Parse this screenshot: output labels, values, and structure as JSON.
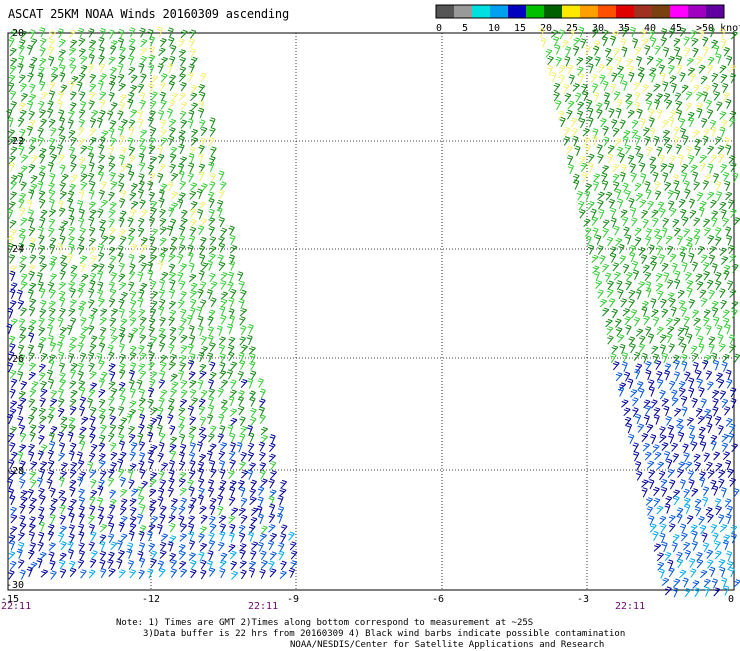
{
  "title": "ASCAT 25KM NOAA Winds 20160309 ascending",
  "legend": {
    "colors": [
      "#555555",
      "#999999",
      "#00e0e0",
      "#00a0f0",
      "#0000c0",
      "#00c000",
      "#006000",
      "#ffe800",
      "#ffa000",
      "#ff5000",
      "#e00000",
      "#a03020",
      "#7a4010",
      "#ff00ff",
      "#a000c0",
      "#6000a0"
    ],
    "labels": [
      "0",
      "5",
      "10",
      "15",
      "20",
      "25",
      "30",
      "35",
      "40",
      "45",
      ">50 knots"
    ]
  },
  "axes": {
    "y_labels": [
      "-20",
      "-22",
      "-24",
      "-26",
      "-28",
      "-30"
    ],
    "x_labels": [
      "-15",
      "-12",
      "-9",
      "-6",
      "-3",
      "0"
    ]
  },
  "times": [
    "22:11",
    "22:11",
    "22:11"
  ],
  "wind_colors": {
    "green_light": "#33cc33",
    "green_dark": "#118811",
    "yellow": "#f0f070",
    "navy": "#000099",
    "blue": "#0055dd",
    "cyan": "#00aaee"
  },
  "notes": {
    "line1": "Note: 1) Times are GMT 2)Times along bottom correspond to measurement at ~25S",
    "line2": "3)Data buffer is 22 hrs from 20160309 4) Black wind barbs indicate possible contamination",
    "line3": "NOAA/NESDIS/Center for Satellite Applications and Research"
  }
}
